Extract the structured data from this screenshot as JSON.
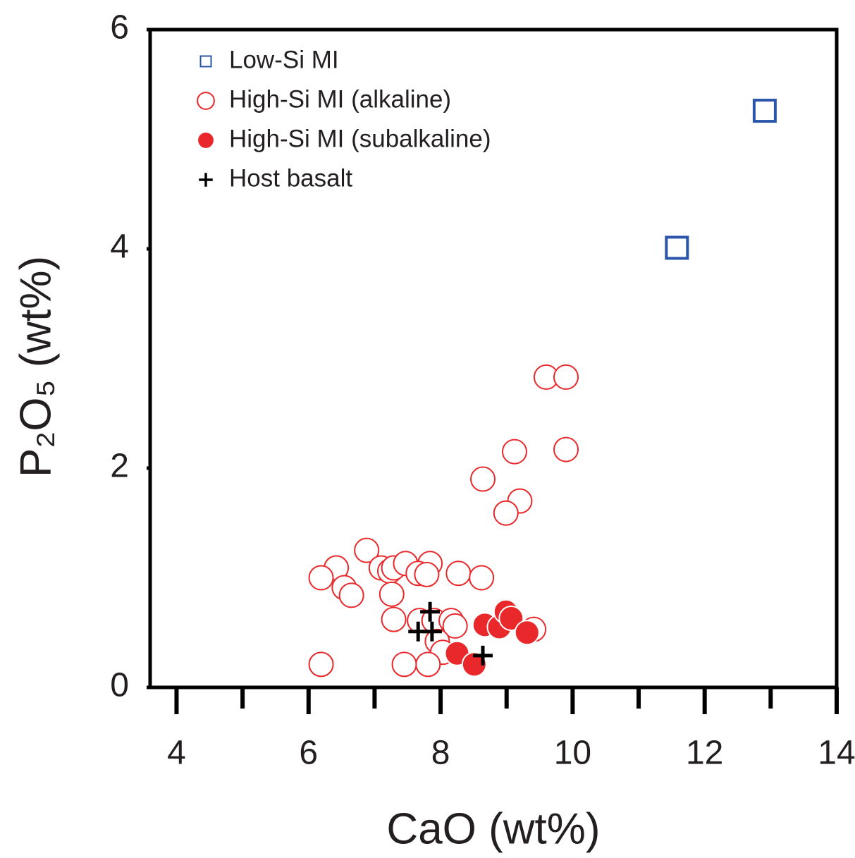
{
  "chart_data": {
    "type": "scatter",
    "x_label": "CaO (wt%)",
    "y_label": "P₂O₅ (wt%)",
    "xlim": [
      3.6,
      14
    ],
    "xticks": [
      4,
      6,
      8,
      10,
      12,
      14
    ],
    "xminorticks": [
      5,
      7,
      9,
      11,
      13
    ],
    "ylim": [
      0,
      6
    ],
    "yticks": [
      0,
      2,
      4,
      6
    ],
    "legend": "upper left",
    "series": [
      {
        "name": "Low-Si MI",
        "color": "#2a55a8",
        "marker": "square",
        "x": [
          11.58,
          12.91
        ],
        "values": [
          4.01,
          5.26
        ]
      },
      {
        "name": "High-Si MI (alkaline)",
        "color": "#e8282b",
        "marker": "circle-open",
        "x": [
          9.6,
          9.9,
          9.12,
          9.9,
          8.64,
          9.2,
          8.99,
          6.88,
          6.42,
          6.19,
          6.54,
          6.65,
          7.1,
          7.23,
          7.29,
          7.47,
          7.84,
          7.66,
          7.79,
          8.27,
          8.62,
          7.26,
          7.29,
          7.68,
          7.9,
          8.16,
          8.22,
          7.95,
          8.03,
          9.41,
          6.19,
          7.45,
          7.81
        ],
        "values": [
          2.83,
          2.83,
          2.15,
          2.17,
          1.9,
          1.7,
          1.59,
          1.25,
          1.09,
          1.0,
          0.91,
          0.84,
          1.09,
          1.06,
          1.09,
          1.13,
          1.13,
          1.04,
          1.03,
          1.04,
          1.0,
          0.85,
          0.62,
          0.61,
          0.61,
          0.61,
          0.56,
          0.42,
          0.32,
          0.53,
          0.21,
          0.21,
          0.21
        ]
      },
      {
        "name": "High-Si MI (subalkaline)",
        "color": "#e8282b",
        "marker": "circle",
        "x": [
          8.25,
          8.51,
          8.67,
          8.89,
          8.99,
          9.07,
          9.31
        ],
        "values": [
          0.31,
          0.21,
          0.57,
          0.55,
          0.69,
          0.63,
          0.5
        ]
      },
      {
        "name": "Host basalt",
        "color": "#000000",
        "marker": "plus",
        "x": [
          7.84,
          7.66,
          7.87,
          8.64
        ],
        "values": [
          0.69,
          0.51,
          0.51,
          0.29
        ]
      }
    ]
  }
}
